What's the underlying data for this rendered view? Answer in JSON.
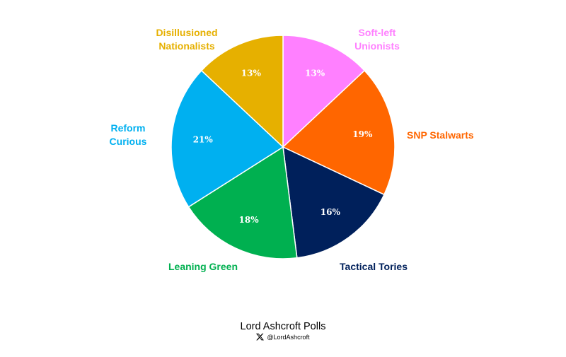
{
  "chart_data": {
    "type": "pie",
    "title": "",
    "start_angle_deg": 0,
    "direction": "clockwise",
    "slices": [
      {
        "label": "Soft-left Unionists",
        "label_lines": [
          "Soft-left",
          "Unionists"
        ],
        "value": 13,
        "display": "13%",
        "color": "#ff80ff"
      },
      {
        "label": "SNP Stalwarts",
        "label_lines": [
          "SNP Stalwarts"
        ],
        "value": 19,
        "display": "19%",
        "color": "#ff6600"
      },
      {
        "label": "Tactical Tories",
        "label_lines": [
          "Tactical Tories"
        ],
        "value": 16,
        "display": "16%",
        "color": "#00205b"
      },
      {
        "label": "Leaning Green",
        "label_lines": [
          "Leaning Green"
        ],
        "value": 18,
        "display": "18%",
        "color": "#00b050"
      },
      {
        "label": "Reform Curious",
        "label_lines": [
          "Reform",
          "Curious"
        ],
        "value": 21,
        "display": "21%",
        "color": "#00b0f0"
      },
      {
        "label": "Disillusioned Nationalists",
        "label_lines": [
          "Disillusioned",
          "Nationalists"
        ],
        "value": 13,
        "display": "13%",
        "color": "#e6b000"
      }
    ]
  },
  "footer": {
    "source": "Lord Ashcroft Polls",
    "handle": "@LordAshcroft",
    "handle_icon": "x-logo-icon"
  }
}
